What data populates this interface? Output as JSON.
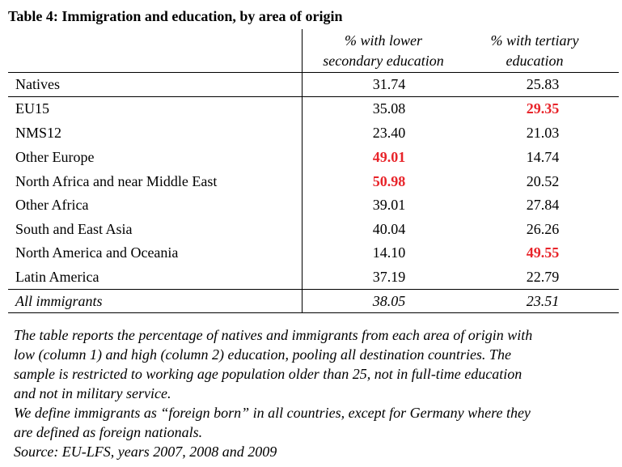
{
  "table": {
    "title": "Table 4: Immigration and education, by area of origin",
    "col1_header": [
      "% with lower",
      "secondary education"
    ],
    "col2_header": [
      "% with tertiary",
      "education"
    ],
    "rows": [
      {
        "label": "Natives",
        "col1": "31.74",
        "col2": "25.83",
        "col1_highlight": false,
        "col2_highlight": false
      },
      {
        "label": "EU15",
        "col1": "35.08",
        "col2": "29.35",
        "col1_highlight": false,
        "col2_highlight": true
      },
      {
        "label": "NMS12",
        "col1": "23.40",
        "col2": "21.03",
        "col1_highlight": false,
        "col2_highlight": false
      },
      {
        "label": "Other Europe",
        "col1": "49.01",
        "col2": "14.74",
        "col1_highlight": true,
        "col2_highlight": false
      },
      {
        "label": "North Africa and near Middle East",
        "col1": "50.98",
        "col2": "20.52",
        "col1_highlight": true,
        "col2_highlight": false
      },
      {
        "label": "Other Africa",
        "col1": "39.01",
        "col2": "27.84",
        "col1_highlight": false,
        "col2_highlight": false
      },
      {
        "label": "South and East Asia",
        "col1": "40.04",
        "col2": "26.26",
        "col1_highlight": false,
        "col2_highlight": false
      },
      {
        "label": "North America and Oceania",
        "col1": "14.10",
        "col2": "49.55",
        "col1_highlight": false,
        "col2_highlight": true
      },
      {
        "label": "Latin America",
        "col1": "37.19",
        "col2": "22.79",
        "col1_highlight": false,
        "col2_highlight": false
      }
    ],
    "total": {
      "label": "All immigrants",
      "col1": "38.05",
      "col2": "23.51"
    }
  },
  "notes": {
    "line1": "The table reports the percentage of natives and immigrants from each area of origin with",
    "line2": "low (column 1) and high (column 2) education, pooling all destination countries. The",
    "line3": "sample is restricted to working age population older than 25, not in full-time education",
    "line4": "and not in military service.",
    "line5": "We define immigrants as “foreign born” in all countries, except for Germany where they",
    "line6": "are defined as foreign nationals.",
    "source": "Source: EU-LFS, years 2007, 2008 and 2009"
  },
  "colors": {
    "highlight": "#e8242a",
    "text": "#000000",
    "background": "#ffffff"
  }
}
